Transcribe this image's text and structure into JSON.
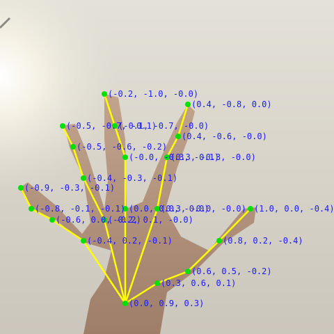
{
  "colors": {
    "bone": "#ffff00",
    "joint": "#00e000",
    "label": "#1a1aff"
  },
  "landmarks": [
    {
      "id": 0,
      "label": "(0.0, 0.9, 0.3)"
    },
    {
      "id": 1,
      "label": "(0.3, 0.6, 0.1)"
    },
    {
      "id": 2,
      "label": "(0.6, 0.5, -0.2)"
    },
    {
      "id": 3,
      "label": "(0.8, 0.2, -0.4)"
    },
    {
      "id": 4,
      "label": "(1.0, 0.0, -0.4)"
    },
    {
      "id": 5,
      "label": "(0.0, 0.0, -0.0)"
    },
    {
      "id": 6,
      "label": "(-0.0, -0.3, -0.1)"
    },
    {
      "id": 7,
      "label": "(-0.1, -0.7, -0.0)"
    },
    {
      "id": 8,
      "label": "(-0.2, -1.0, -0.0)"
    },
    {
      "id": 9,
      "label": "(0.3, -0.0, -0.0)"
    },
    {
      "id": 10,
      "label": "(0.3, -0.3, -0.0)"
    },
    {
      "id": 11,
      "label": "(0.4, -0.6, -0.0)"
    },
    {
      "id": 12,
      "label": "(0.4, -0.8, 0.0)"
    },
    {
      "id": 13,
      "label": "(-0.2, 0.1, -0.0)"
    },
    {
      "id": 14,
      "label": "(-0.4, -0.3, -0.1)"
    },
    {
      "id": 15,
      "label": "(-0.5, -0.6, -0.2)"
    },
    {
      "id": 16,
      "label": "(-0.5, -0.7, -0.1)"
    },
    {
      "id": 17,
      "label": "(-0.4, 0.2, -0.1)"
    },
    {
      "id": 18,
      "label": "(-0.6, 0.0, -0.2)"
    },
    {
      "id": 19,
      "label": "(-0.8, -0.1, -0.1)"
    },
    {
      "id": 20,
      "label": "(-0.9, -0.3, -0.1)"
    }
  ],
  "connections": [
    [
      0,
      1
    ],
    [
      1,
      2
    ],
    [
      2,
      3
    ],
    [
      3,
      4
    ],
    [
      0,
      5
    ],
    [
      5,
      6
    ],
    [
      6,
      7
    ],
    [
      7,
      8
    ],
    [
      0,
      9
    ],
    [
      9,
      10
    ],
    [
      10,
      11
    ],
    [
      11,
      12
    ],
    [
      0,
      13
    ],
    [
      13,
      14
    ],
    [
      14,
      15
    ],
    [
      15,
      16
    ],
    [
      0,
      17
    ],
    [
      17,
      18
    ],
    [
      18,
      19
    ],
    [
      19,
      20
    ]
  ]
}
